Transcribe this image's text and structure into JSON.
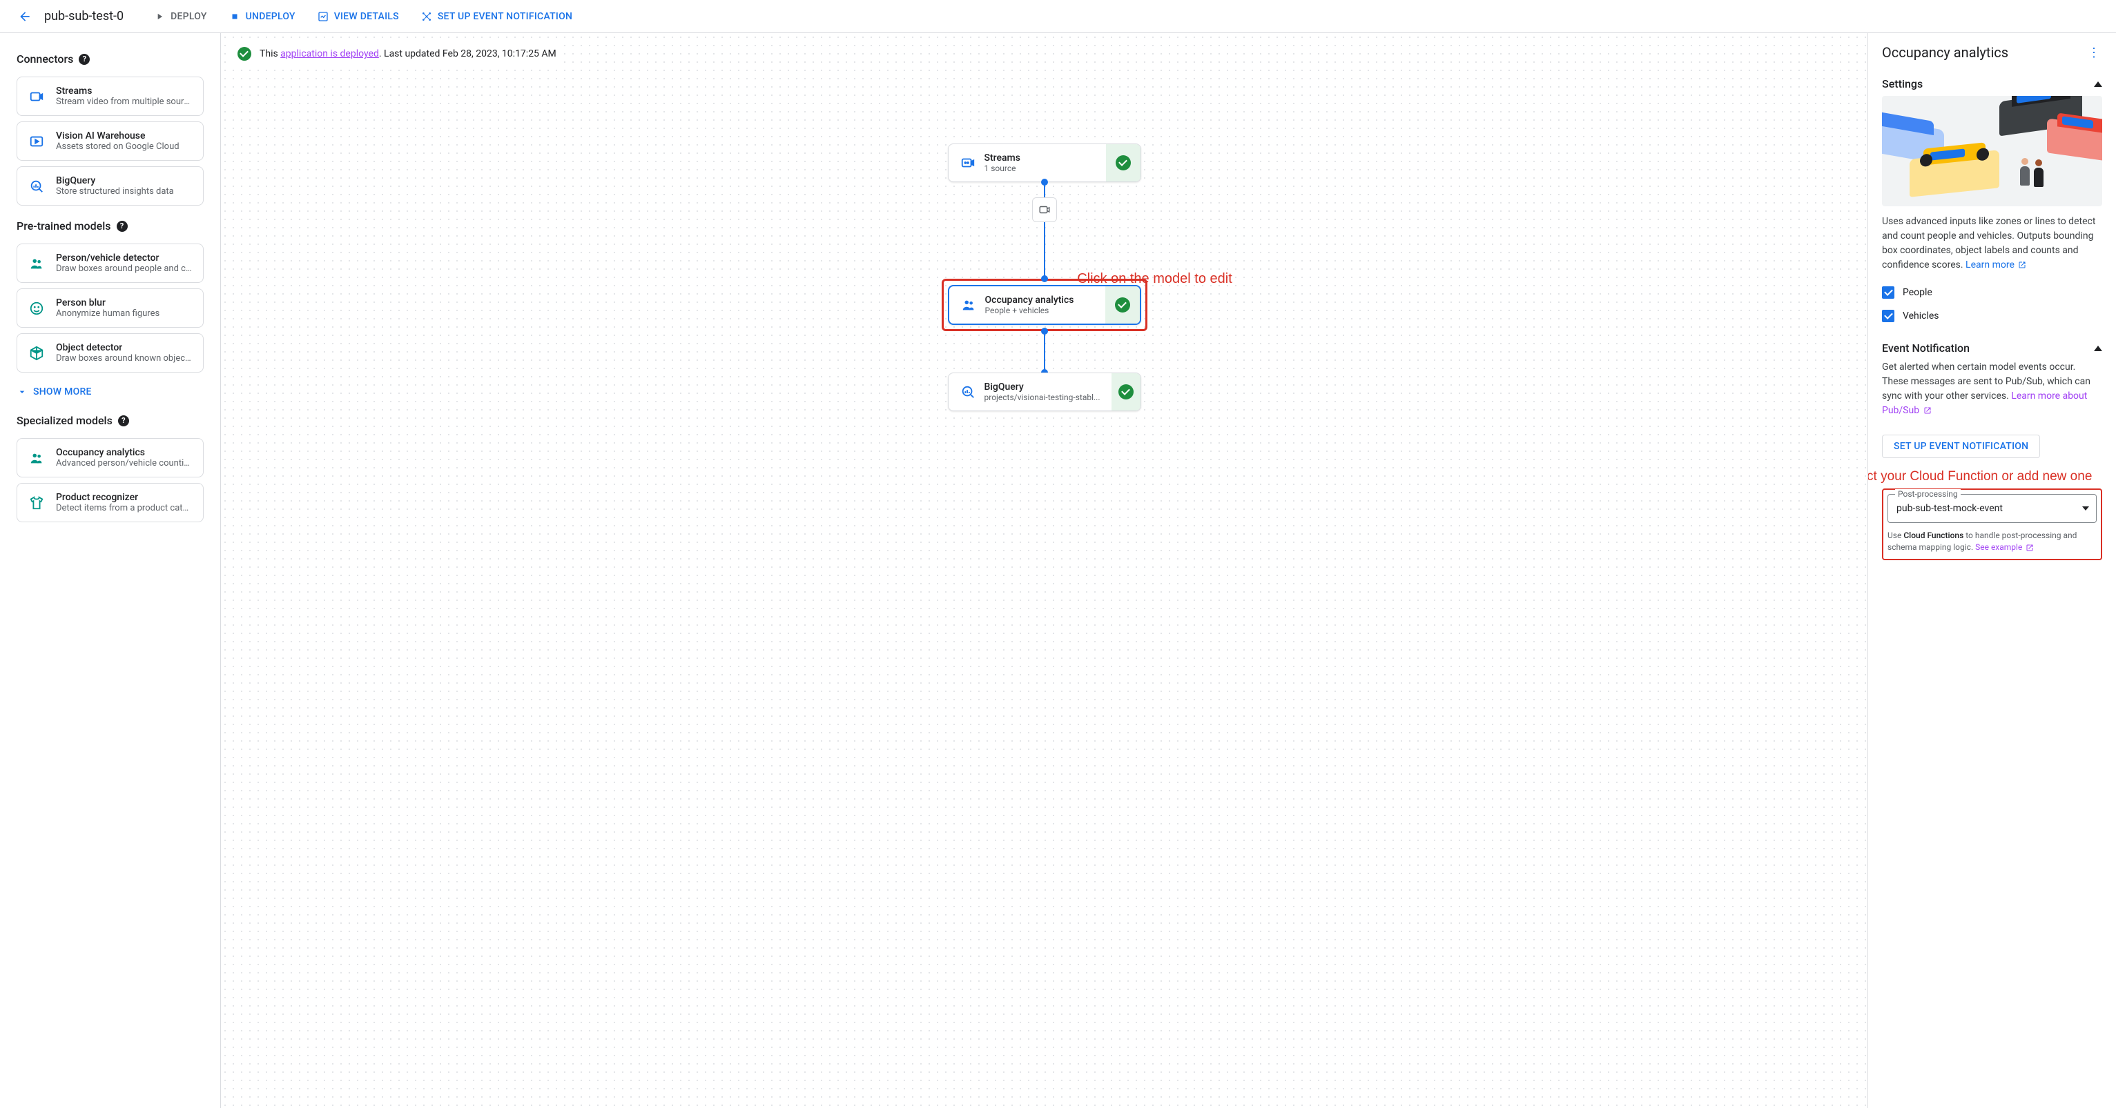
{
  "header": {
    "page_title": "pub-sub-test-0",
    "deploy": "Deploy",
    "undeploy": "Undeploy",
    "view_details": "View Details",
    "setup_event": "Set Up Event Notification"
  },
  "sidebar": {
    "connectors_label": "Connectors",
    "connectors": [
      {
        "title": "Streams",
        "sub": "Stream video from multiple sources",
        "icon": "video",
        "color": "blue"
      },
      {
        "title": "Vision AI Warehouse",
        "sub": "Assets stored on Google Cloud",
        "icon": "play",
        "color": "blue"
      },
      {
        "title": "BigQuery",
        "sub": "Store structured insights data",
        "icon": "bq",
        "color": "blue"
      }
    ],
    "pretrained_label": "Pre-trained models",
    "pretrained": [
      {
        "title": "Person/vehicle detector",
        "sub": "Draw boxes around people and cars",
        "icon": "people",
        "color": "teal"
      },
      {
        "title": "Person blur",
        "sub": "Anonymize human figures",
        "icon": "face",
        "color": "teal"
      },
      {
        "title": "Object detector",
        "sub": "Draw boxes around known objects",
        "icon": "cube",
        "color": "teal"
      }
    ],
    "show_more": "SHOW MORE",
    "specialized_label": "Specialized models",
    "specialized": [
      {
        "title": "Occupancy analytics",
        "sub": "Advanced person/vehicle counting",
        "icon": "people",
        "color": "teal"
      },
      {
        "title": "Product recognizer",
        "sub": "Detect items from a product catalog",
        "icon": "shirt",
        "color": "teal"
      }
    ]
  },
  "canvas": {
    "status_prefix": "This ",
    "status_link": "application is deployed",
    "status_suffix": ". Last updated Feb 28, 2023, 10:17:25 AM",
    "annotation1": "Click on the model to edit",
    "annotation2": "Select your Cloud Function or add new one",
    "nodes": [
      {
        "title": "Streams",
        "sub": "1 source",
        "icon": "video",
        "selected": false
      },
      {
        "title": "Occupancy analytics",
        "sub": "People + vehicles",
        "icon": "people",
        "selected": true
      },
      {
        "title": "BigQuery",
        "sub": "projects/visionai-testing-stabl...",
        "icon": "bq",
        "selected": false
      }
    ]
  },
  "right_panel": {
    "title": "Occupancy analytics",
    "settings_label": "Settings",
    "description": "Uses advanced inputs like zones or lines to detect and count people and vehicles. Outputs bounding box coordinates, object labels and counts and confidence scores. ",
    "learn_more": "Learn more",
    "check_people": "People",
    "check_vehicles": "Vehicles",
    "event_label": "Event Notification",
    "event_desc": "Get alerted when certain model events occur. These messages are sent to Pub/Sub, which can sync with your other services. ",
    "event_link": "Learn more about Pub/Sub",
    "setup_btn": "SET UP EVENT NOTIFICATION",
    "pp_label": "Post-processing",
    "pp_value": "pub-sub-test-mock-event",
    "pp_help_prefix": "Use ",
    "pp_help_bold": "Cloud Functions",
    "pp_help_suffix": " to handle post-processing and schema mapping logic. ",
    "pp_example": "See example",
    "hero_colors": {
      "bg": "#f1f3f4",
      "car_blue": "#4285f4",
      "car_blue_dark": "#1a73e8",
      "car_black": "#202124",
      "car_yellow": "#fbbc04",
      "car_yellow_dark": "#f9ab00",
      "car_red": "#ea4335",
      "car_red_dark": "#c5221f",
      "person1_top": "#5f6368",
      "person2_top": "#202124"
    }
  },
  "colors": {
    "primary": "#1a73e8",
    "success": "#1e8e3e",
    "danger": "#d93025",
    "purple_link": "#a142f4",
    "teal": "#009688"
  }
}
